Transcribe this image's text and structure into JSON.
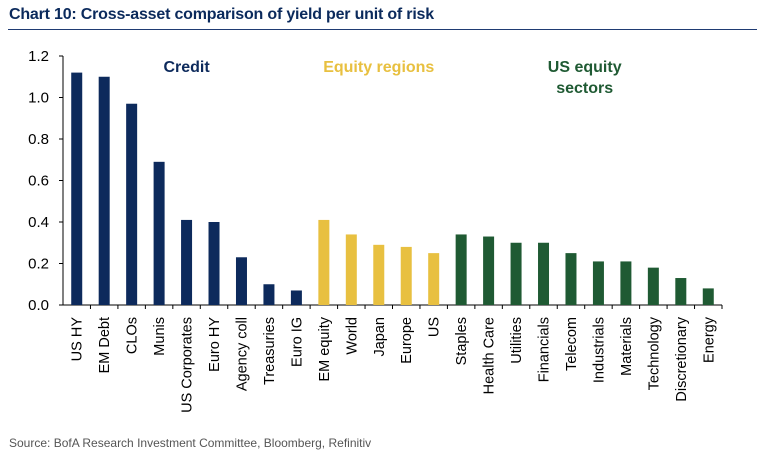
{
  "title": "Chart 10: Cross-asset comparison of yield per unit of risk",
  "source": "Source: BofA Research Investment Committee, Bloomberg, Refinitiv",
  "chart_data": {
    "type": "bar",
    "title": "Chart 10: Cross-asset comparison of yield per unit of risk",
    "xlabel": "",
    "ylabel": "",
    "ylim": [
      0,
      1.2
    ],
    "yticks": [
      "0.0",
      "0.2",
      "0.4",
      "0.6",
      "0.8",
      "1.0",
      "1.2"
    ],
    "grid": false,
    "colors": {
      "Credit": "#0d2a5c",
      "Equity regions": "#e8c040",
      "US equity sectors": "#1f5a33"
    },
    "group_labels": [
      {
        "group": "Credit",
        "lines": [
          "Credit"
        ]
      },
      {
        "group": "Equity regions",
        "lines": [
          "Equity regions"
        ]
      },
      {
        "group": "US equity sectors",
        "lines": [
          "US equity",
          "sectors"
        ]
      }
    ],
    "categories": [
      "US HY",
      "EM Debt",
      "CLOs",
      "Munis",
      "US Corporates",
      "Euro HY",
      "Agency coll",
      "Treasuries",
      "Euro IG",
      "EM equity",
      "World",
      "Japan",
      "Europe",
      "US",
      "Staples",
      "Health Care",
      "Utilities",
      "Financials",
      "Telecom",
      "Industrials",
      "Materials",
      "Technology",
      "Discretionary",
      "Energy"
    ],
    "values": [
      1.12,
      1.1,
      0.97,
      0.69,
      0.41,
      0.4,
      0.23,
      0.1,
      0.07,
      0.41,
      0.34,
      0.29,
      0.28,
      0.25,
      0.34,
      0.33,
      0.3,
      0.3,
      0.25,
      0.21,
      0.21,
      0.18,
      0.13,
      0.08
    ],
    "groups": [
      "Credit",
      "Credit",
      "Credit",
      "Credit",
      "Credit",
      "Credit",
      "Credit",
      "Credit",
      "Credit",
      "Equity regions",
      "Equity regions",
      "Equity regions",
      "Equity regions",
      "Equity regions",
      "US equity sectors",
      "US equity sectors",
      "US equity sectors",
      "US equity sectors",
      "US equity sectors",
      "US equity sectors",
      "US equity sectors",
      "US equity sectors",
      "US equity sectors",
      "US equity sectors"
    ]
  }
}
